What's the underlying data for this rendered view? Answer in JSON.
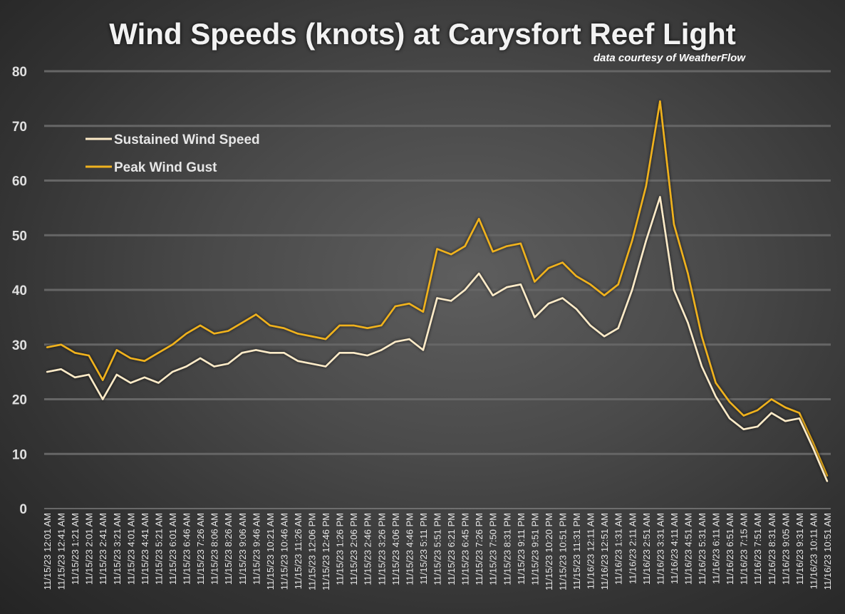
{
  "chart_data": {
    "type": "line",
    "title": "Wind Speeds (knots) at Carysfort Reef Light",
    "subtitle": "data courtesy of WeatherFlow",
    "xlabel": "",
    "ylabel": "",
    "ylim": [
      0,
      80
    ],
    "yticks": [
      0,
      10,
      20,
      30,
      40,
      50,
      60,
      70,
      80
    ],
    "grid": true,
    "legend_position": "top-left",
    "x_tick_labels": [
      "11/15/23 12:01 AM",
      "11/15/23 12:41 AM",
      "11/15/23 1:21 AM",
      "11/15/23 2:01 AM",
      "11/15/23 2:41 AM",
      "11/15/23 3:21 AM",
      "11/15/23 4:01 AM",
      "11/15/23 4:41 AM",
      "11/15/23 5:21 AM",
      "11/15/23 6:01 AM",
      "11/15/23 6:46 AM",
      "11/15/23 7:26 AM",
      "11/15/23 8:06 AM",
      "11/15/23 8:26 AM",
      "11/15/23 9:06 AM",
      "11/15/23 9:46 AM",
      "11/15/23 10:21 AM",
      "11/15/23 10:46 AM",
      "11/15/23 11:26 AM",
      "11/15/23 12:06 PM",
      "11/15/23 12:46 PM",
      "11/15/23 1:26 PM",
      "11/15/23 2:06 PM",
      "11/15/23 2:46 PM",
      "11/15/23 3:26 PM",
      "11/15/23 4:06 PM",
      "11/15/23 4:46 PM",
      "11/15/23 5:11 PM",
      "11/15/23 5:51 PM",
      "11/15/23 6:21 PM",
      "11/15/23 6:45 PM",
      "11/15/23 7:26 PM",
      "11/15/23 7:50 PM",
      "11/15/23 8:31 PM",
      "11/15/23 9:11 PM",
      "11/15/23 9:51 PM",
      "11/15/23 10:20 PM",
      "11/15/23 10:51 PM",
      "11/15/23 11:31 PM",
      "11/16/23 12:11 AM",
      "11/16/23 12:51 AM",
      "11/16/23 1:31 AM",
      "11/16/23 2:11 AM",
      "11/16/23 2:51 AM",
      "11/16/23 3:31 AM",
      "11/16/23 4:11 AM",
      "11/16/23 4:51 AM",
      "11/16/23 5:31 AM",
      "11/16/23 6:11 AM",
      "11/16/23 6:51 AM",
      "11/16/23 7:15 AM",
      "11/16/23 7:51 AM",
      "11/16/23 8:31 AM",
      "11/16/23 9:05 AM",
      "11/16/23 9:31 AM",
      "11/16/23 10:11 AM",
      "11/16/23 10:51 AM"
    ],
    "series": [
      {
        "name": "Sustained Wind Speed",
        "color": "#fdebc8",
        "values": [
          25.0,
          25.5,
          24.0,
          24.5,
          20.0,
          24.5,
          23.0,
          24.0,
          23.0,
          25.0,
          26.0,
          27.5,
          26.0,
          26.5,
          28.5,
          29.0,
          28.5,
          28.5,
          27.0,
          26.5,
          26.0,
          28.5,
          28.5,
          28.0,
          29.0,
          30.5,
          31.0,
          29.0,
          38.5,
          38.0,
          40.0,
          43.0,
          39.0,
          40.5,
          41.0,
          35.0,
          37.5,
          38.5,
          36.5,
          33.5,
          31.5,
          33.0,
          40.0,
          49.0,
          57.0,
          40.0,
          34.0,
          26.0,
          20.5,
          16.5,
          14.5,
          15.0,
          17.5,
          16.0,
          16.5,
          11.0,
          5.0
        ]
      },
      {
        "name": "Peak Wind Gust",
        "color": "#f0b21f",
        "values": [
          29.5,
          30.0,
          28.5,
          28.0,
          23.5,
          29.0,
          27.5,
          27.0,
          28.5,
          30.0,
          32.0,
          33.5,
          32.0,
          32.5,
          34.0,
          35.5,
          33.5,
          33.0,
          32.0,
          31.5,
          31.0,
          33.5,
          33.5,
          33.0,
          33.5,
          37.0,
          37.5,
          36.0,
          47.5,
          46.5,
          48.0,
          53.0,
          47.0,
          48.0,
          48.5,
          41.5,
          44.0,
          45.0,
          42.5,
          41.0,
          39.0,
          41.0,
          49.0,
          59.0,
          74.5,
          52.0,
          43.0,
          31.5,
          23.0,
          19.5,
          17.0,
          18.0,
          20.0,
          18.5,
          17.5,
          12.0,
          6.0
        ]
      }
    ]
  }
}
